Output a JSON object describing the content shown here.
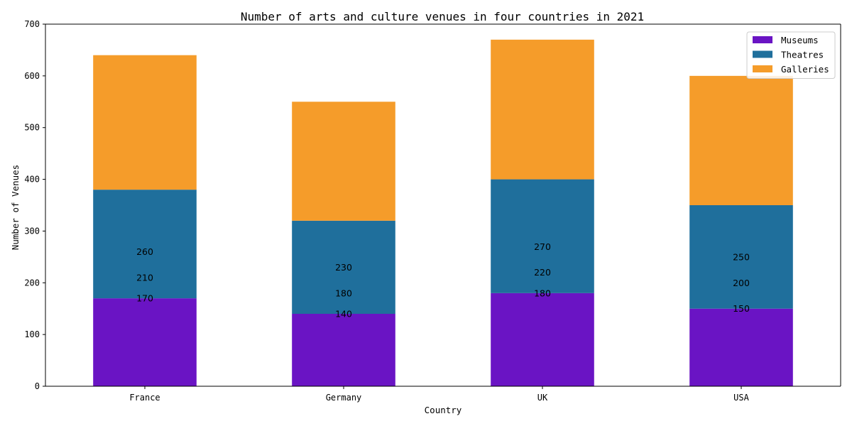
{
  "chart_data": {
    "type": "bar",
    "stacked": true,
    "title": "Number of arts and culture venues in four countries in 2021",
    "xlabel": "Country",
    "ylabel": "Number of Venues",
    "categories": [
      "France",
      "Germany",
      "UK",
      "USA"
    ],
    "series": [
      {
        "name": "Museums",
        "values": [
          170,
          140,
          180,
          150
        ],
        "color": "#6a14c4"
      },
      {
        "name": "Theatres",
        "values": [
          210,
          180,
          220,
          200
        ],
        "color": "#1f6f9c"
      },
      {
        "name": "Galleries",
        "values": [
          260,
          230,
          270,
          250
        ],
        "color": "#f59c2a"
      }
    ],
    "ylim": [
      0,
      700
    ],
    "yticks": [
      0,
      100,
      200,
      300,
      400,
      500,
      600,
      700
    ],
    "grid": false,
    "legend_position": "top-right",
    "data_labels": [
      {
        "category": "France",
        "values": [
          170,
          210,
          260
        ]
      },
      {
        "category": "Germany",
        "values": [
          140,
          180,
          230
        ]
      },
      {
        "category": "UK",
        "values": [
          180,
          220,
          270
        ]
      },
      {
        "category": "USA",
        "values": [
          150,
          200,
          250
        ]
      }
    ]
  }
}
